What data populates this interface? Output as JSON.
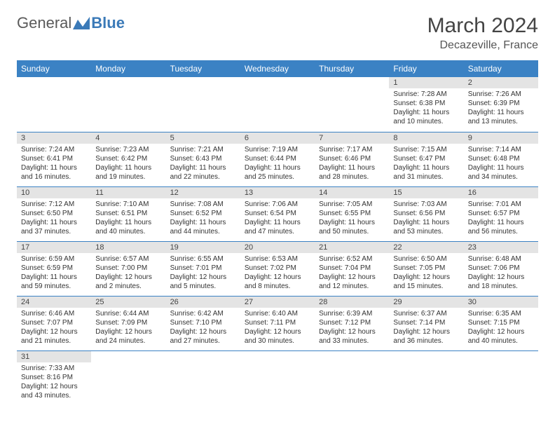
{
  "brand": {
    "general": "General",
    "blue": "Blue"
  },
  "title": "March 2024",
  "location": "Decazeville, France",
  "colors": {
    "header_bg": "#3b82c4",
    "header_text": "#ffffff",
    "daynum_bg": "#e4e4e4",
    "row_border": "#3b82c4",
    "body_text": "#333333",
    "logo_general": "#5a5a5a",
    "logo_blue": "#3b7ab8"
  },
  "weekdays": [
    "Sunday",
    "Monday",
    "Tuesday",
    "Wednesday",
    "Thursday",
    "Friday",
    "Saturday"
  ],
  "weeks": [
    [
      {
        "day": "",
        "sunrise": "",
        "sunset": "",
        "daylight": ""
      },
      {
        "day": "",
        "sunrise": "",
        "sunset": "",
        "daylight": ""
      },
      {
        "day": "",
        "sunrise": "",
        "sunset": "",
        "daylight": ""
      },
      {
        "day": "",
        "sunrise": "",
        "sunset": "",
        "daylight": ""
      },
      {
        "day": "",
        "sunrise": "",
        "sunset": "",
        "daylight": ""
      },
      {
        "day": "1",
        "sunrise": "Sunrise: 7:28 AM",
        "sunset": "Sunset: 6:38 PM",
        "daylight": "Daylight: 11 hours and 10 minutes."
      },
      {
        "day": "2",
        "sunrise": "Sunrise: 7:26 AM",
        "sunset": "Sunset: 6:39 PM",
        "daylight": "Daylight: 11 hours and 13 minutes."
      }
    ],
    [
      {
        "day": "3",
        "sunrise": "Sunrise: 7:24 AM",
        "sunset": "Sunset: 6:41 PM",
        "daylight": "Daylight: 11 hours and 16 minutes."
      },
      {
        "day": "4",
        "sunrise": "Sunrise: 7:23 AM",
        "sunset": "Sunset: 6:42 PM",
        "daylight": "Daylight: 11 hours and 19 minutes."
      },
      {
        "day": "5",
        "sunrise": "Sunrise: 7:21 AM",
        "sunset": "Sunset: 6:43 PM",
        "daylight": "Daylight: 11 hours and 22 minutes."
      },
      {
        "day": "6",
        "sunrise": "Sunrise: 7:19 AM",
        "sunset": "Sunset: 6:44 PM",
        "daylight": "Daylight: 11 hours and 25 minutes."
      },
      {
        "day": "7",
        "sunrise": "Sunrise: 7:17 AM",
        "sunset": "Sunset: 6:46 PM",
        "daylight": "Daylight: 11 hours and 28 minutes."
      },
      {
        "day": "8",
        "sunrise": "Sunrise: 7:15 AM",
        "sunset": "Sunset: 6:47 PM",
        "daylight": "Daylight: 11 hours and 31 minutes."
      },
      {
        "day": "9",
        "sunrise": "Sunrise: 7:14 AM",
        "sunset": "Sunset: 6:48 PM",
        "daylight": "Daylight: 11 hours and 34 minutes."
      }
    ],
    [
      {
        "day": "10",
        "sunrise": "Sunrise: 7:12 AM",
        "sunset": "Sunset: 6:50 PM",
        "daylight": "Daylight: 11 hours and 37 minutes."
      },
      {
        "day": "11",
        "sunrise": "Sunrise: 7:10 AM",
        "sunset": "Sunset: 6:51 PM",
        "daylight": "Daylight: 11 hours and 40 minutes."
      },
      {
        "day": "12",
        "sunrise": "Sunrise: 7:08 AM",
        "sunset": "Sunset: 6:52 PM",
        "daylight": "Daylight: 11 hours and 44 minutes."
      },
      {
        "day": "13",
        "sunrise": "Sunrise: 7:06 AM",
        "sunset": "Sunset: 6:54 PM",
        "daylight": "Daylight: 11 hours and 47 minutes."
      },
      {
        "day": "14",
        "sunrise": "Sunrise: 7:05 AM",
        "sunset": "Sunset: 6:55 PM",
        "daylight": "Daylight: 11 hours and 50 minutes."
      },
      {
        "day": "15",
        "sunrise": "Sunrise: 7:03 AM",
        "sunset": "Sunset: 6:56 PM",
        "daylight": "Daylight: 11 hours and 53 minutes."
      },
      {
        "day": "16",
        "sunrise": "Sunrise: 7:01 AM",
        "sunset": "Sunset: 6:57 PM",
        "daylight": "Daylight: 11 hours and 56 minutes."
      }
    ],
    [
      {
        "day": "17",
        "sunrise": "Sunrise: 6:59 AM",
        "sunset": "Sunset: 6:59 PM",
        "daylight": "Daylight: 11 hours and 59 minutes."
      },
      {
        "day": "18",
        "sunrise": "Sunrise: 6:57 AM",
        "sunset": "Sunset: 7:00 PM",
        "daylight": "Daylight: 12 hours and 2 minutes."
      },
      {
        "day": "19",
        "sunrise": "Sunrise: 6:55 AM",
        "sunset": "Sunset: 7:01 PM",
        "daylight": "Daylight: 12 hours and 5 minutes."
      },
      {
        "day": "20",
        "sunrise": "Sunrise: 6:53 AM",
        "sunset": "Sunset: 7:02 PM",
        "daylight": "Daylight: 12 hours and 8 minutes."
      },
      {
        "day": "21",
        "sunrise": "Sunrise: 6:52 AM",
        "sunset": "Sunset: 7:04 PM",
        "daylight": "Daylight: 12 hours and 12 minutes."
      },
      {
        "day": "22",
        "sunrise": "Sunrise: 6:50 AM",
        "sunset": "Sunset: 7:05 PM",
        "daylight": "Daylight: 12 hours and 15 minutes."
      },
      {
        "day": "23",
        "sunrise": "Sunrise: 6:48 AM",
        "sunset": "Sunset: 7:06 PM",
        "daylight": "Daylight: 12 hours and 18 minutes."
      }
    ],
    [
      {
        "day": "24",
        "sunrise": "Sunrise: 6:46 AM",
        "sunset": "Sunset: 7:07 PM",
        "daylight": "Daylight: 12 hours and 21 minutes."
      },
      {
        "day": "25",
        "sunrise": "Sunrise: 6:44 AM",
        "sunset": "Sunset: 7:09 PM",
        "daylight": "Daylight: 12 hours and 24 minutes."
      },
      {
        "day": "26",
        "sunrise": "Sunrise: 6:42 AM",
        "sunset": "Sunset: 7:10 PM",
        "daylight": "Daylight: 12 hours and 27 minutes."
      },
      {
        "day": "27",
        "sunrise": "Sunrise: 6:40 AM",
        "sunset": "Sunset: 7:11 PM",
        "daylight": "Daylight: 12 hours and 30 minutes."
      },
      {
        "day": "28",
        "sunrise": "Sunrise: 6:39 AM",
        "sunset": "Sunset: 7:12 PM",
        "daylight": "Daylight: 12 hours and 33 minutes."
      },
      {
        "day": "29",
        "sunrise": "Sunrise: 6:37 AM",
        "sunset": "Sunset: 7:14 PM",
        "daylight": "Daylight: 12 hours and 36 minutes."
      },
      {
        "day": "30",
        "sunrise": "Sunrise: 6:35 AM",
        "sunset": "Sunset: 7:15 PM",
        "daylight": "Daylight: 12 hours and 40 minutes."
      }
    ],
    [
      {
        "day": "31",
        "sunrise": "Sunrise: 7:33 AM",
        "sunset": "Sunset: 8:16 PM",
        "daylight": "Daylight: 12 hours and 43 minutes."
      },
      {
        "day": "",
        "sunrise": "",
        "sunset": "",
        "daylight": ""
      },
      {
        "day": "",
        "sunrise": "",
        "sunset": "",
        "daylight": ""
      },
      {
        "day": "",
        "sunrise": "",
        "sunset": "",
        "daylight": ""
      },
      {
        "day": "",
        "sunrise": "",
        "sunset": "",
        "daylight": ""
      },
      {
        "day": "",
        "sunrise": "",
        "sunset": "",
        "daylight": ""
      },
      {
        "day": "",
        "sunrise": "",
        "sunset": "",
        "daylight": ""
      }
    ]
  ]
}
